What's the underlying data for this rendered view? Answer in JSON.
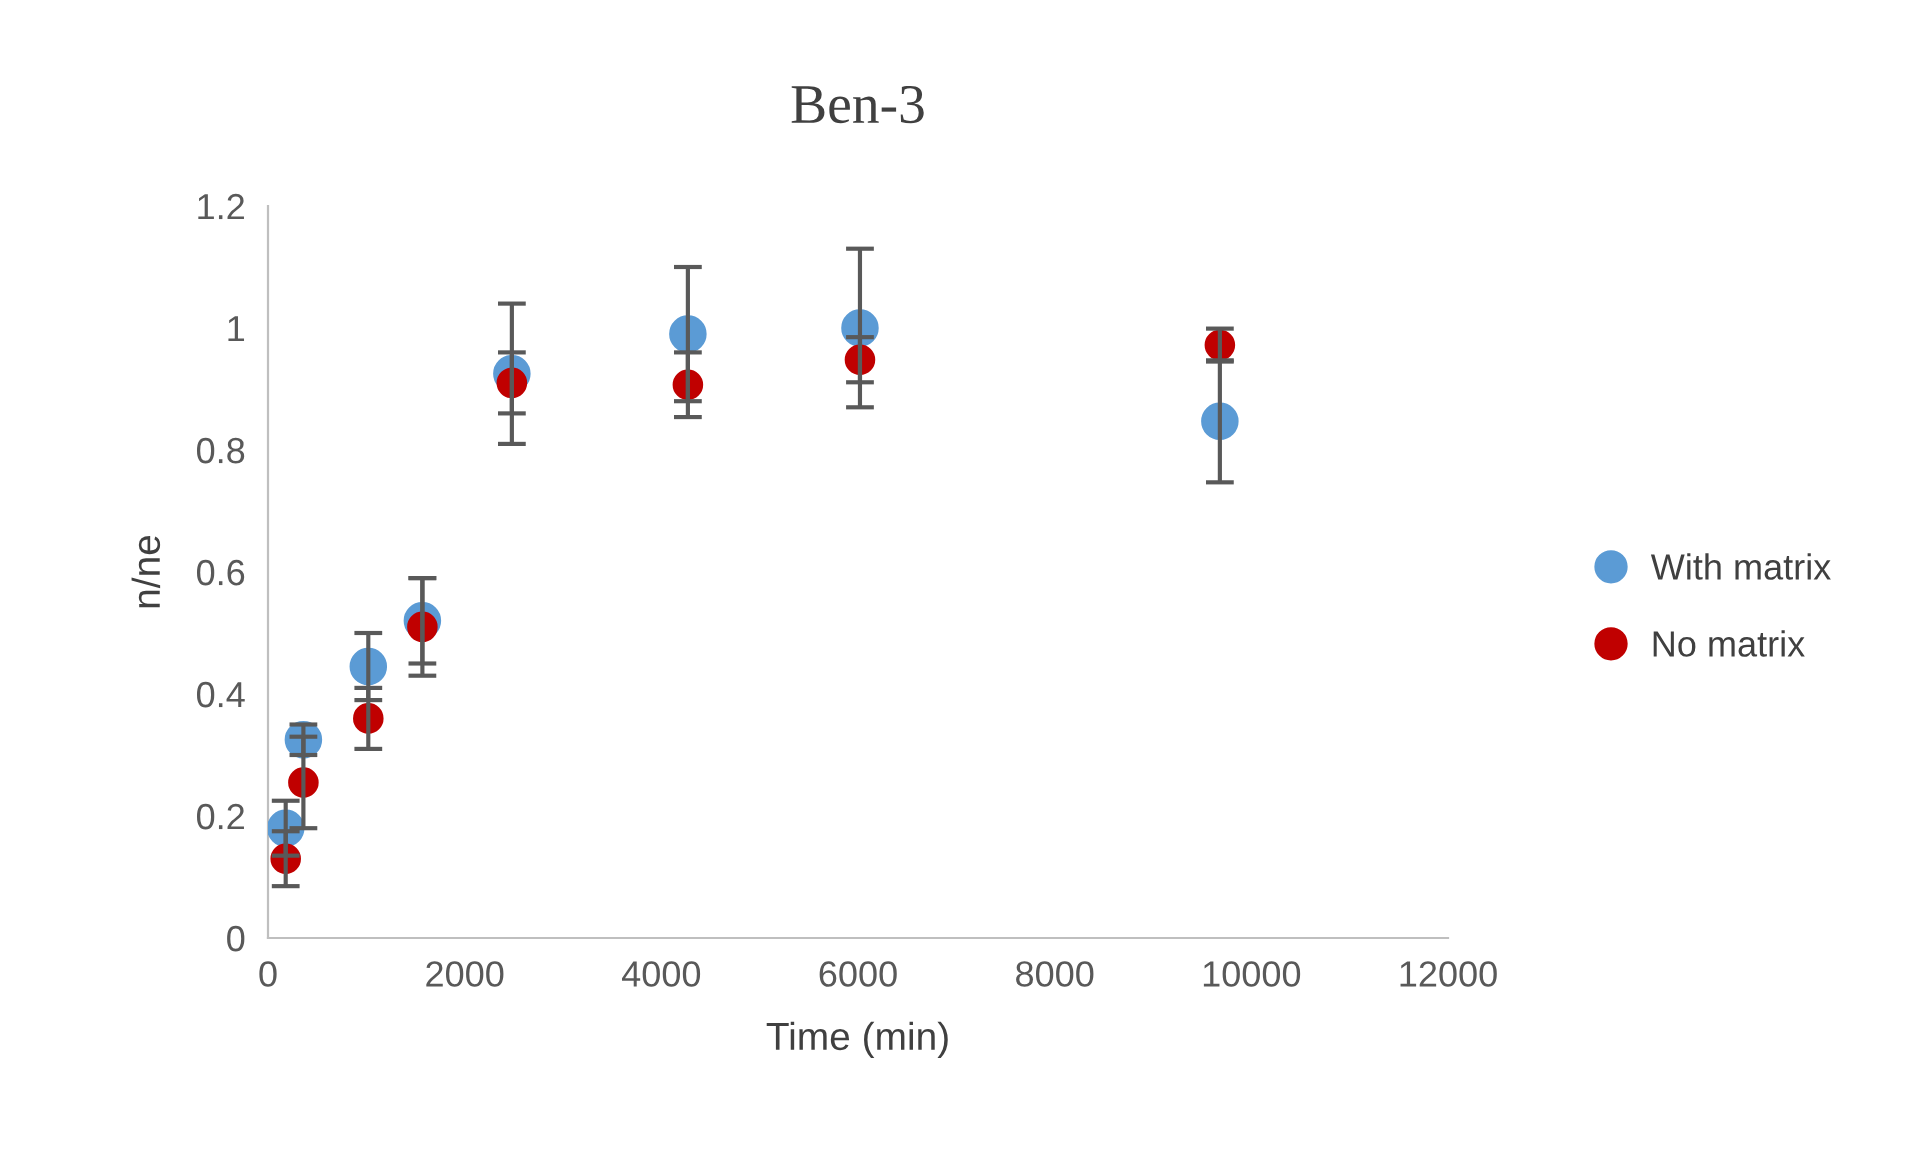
{
  "chart_data": {
    "type": "scatter",
    "title": "Ben-3",
    "xlabel": "Time (min)",
    "ylabel": "n/ne",
    "x": [
      180,
      360,
      1020,
      1570,
      2480,
      4270,
      6020,
      9680
    ],
    "series": [
      {
        "name": "With matrix",
        "color": "#5b9bd5",
        "values": [
          0.18,
          0.325,
          0.445,
          0.52,
          0.925,
          0.99,
          1.0,
          0.847
        ],
        "errors": [
          0.045,
          0.025,
          0.055,
          0.07,
          0.115,
          0.11,
          0.13,
          0.1
        ]
      },
      {
        "name": "No matrix",
        "color": "#c00000",
        "values": [
          0.13,
          0.255,
          0.36,
          0.51,
          0.91,
          0.907,
          0.948,
          0.972
        ],
        "errors": [
          0.045,
          0.075,
          0.05,
          0.08,
          0.05,
          0.053,
          0.037,
          0.027
        ]
      }
    ],
    "xlim": [
      0,
      12000
    ],
    "xticks": [
      0,
      2000,
      4000,
      6000,
      8000,
      10000,
      12000
    ],
    "ylim": [
      0,
      1.2
    ],
    "yticks": [
      0,
      {
        "value": 0.2,
        "label": "0.2"
      },
      {
        "value": 0.4,
        "label": "0.4"
      },
      {
        "value": 0.6,
        "label": "0.6"
      },
      {
        "value": 0.8,
        "label": "0.8"
      },
      1,
      {
        "value": 1.2,
        "label": "1.2"
      }
    ],
    "grid": false,
    "legend": "right",
    "marker": "circle"
  }
}
